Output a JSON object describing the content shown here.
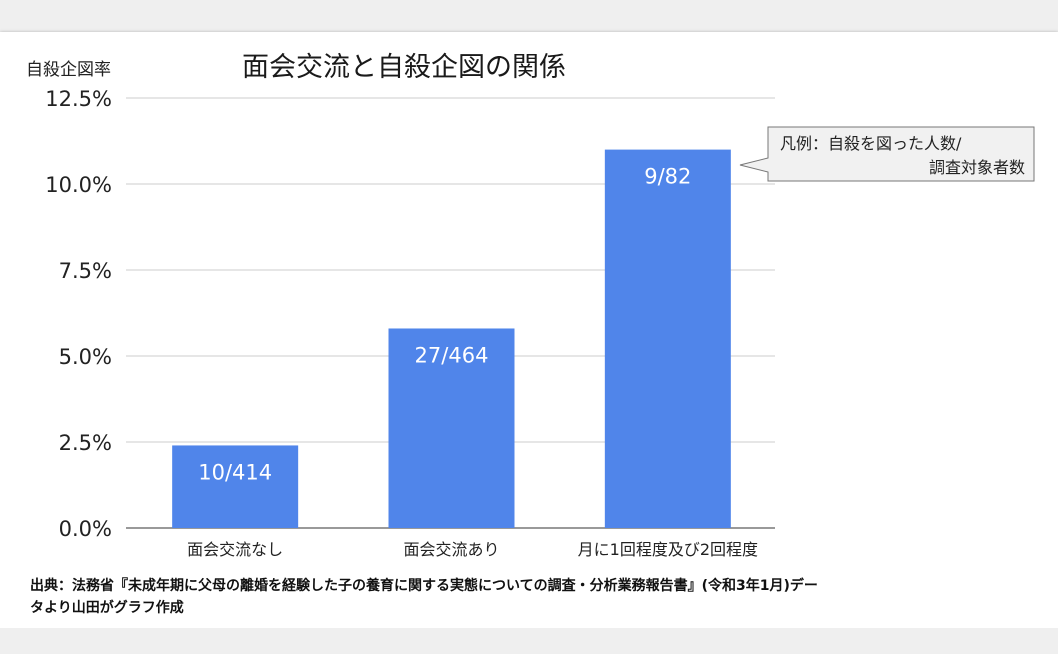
{
  "chart_data": {
    "type": "bar",
    "title": "面会交流と自殺企図の関係",
    "ylabel": "自殺企図率",
    "xlabel": "",
    "categories": [
      "面会交流なし",
      "面会交流あり",
      "月に1回程度及び2回程度"
    ],
    "values": [
      2.4,
      5.8,
      11.0
    ],
    "data_labels": [
      "10/414",
      "27/464",
      "9/82"
    ],
    "ylim": [
      0,
      12.5
    ],
    "yticks": [
      "0.0%",
      "2.5%",
      "5.0%",
      "7.5%",
      "10.0%",
      "12.5%"
    ],
    "ytick_values": [
      0,
      2.5,
      5,
      7.5,
      10,
      12.5
    ],
    "grid": true,
    "bar_color": "#5085ea",
    "legend_note": {
      "lines": [
        "凡例：自殺を図った人数/",
        "調査対象者数"
      ],
      "placement": "top-right"
    }
  },
  "source": {
    "lines": [
      "出典：法務省『未成年期に父母の離婚を経験した子の養育に関する実態についての調査・分析業務報告書』(令和3年1月)デー",
      "タより山田がグラフ作成"
    ]
  }
}
